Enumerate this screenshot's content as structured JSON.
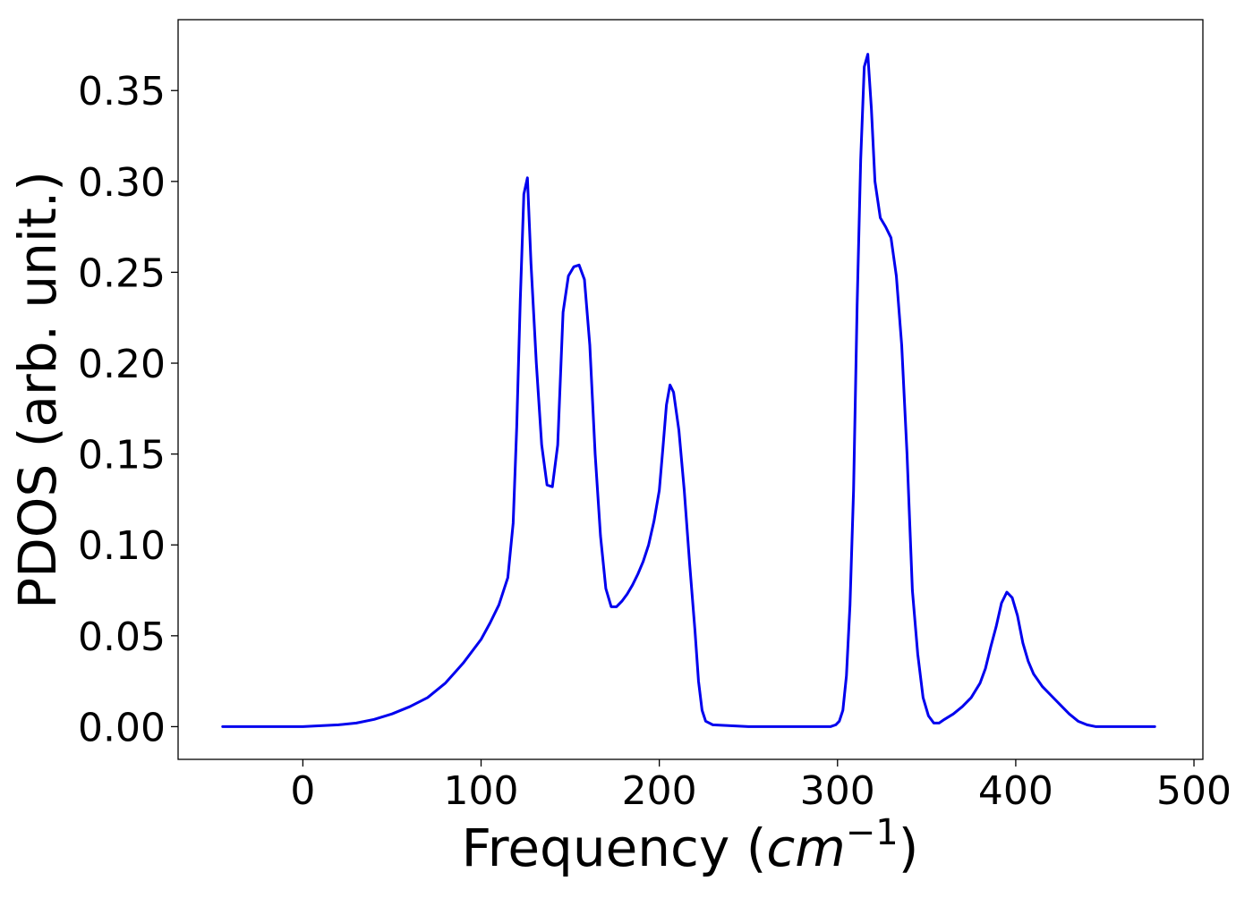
{
  "chart_data": {
    "type": "line",
    "title": "",
    "xlabel": {
      "prefix": "Frequency (",
      "var": "cm",
      "sup": "−1",
      "suffix": ")"
    },
    "ylabel": "PDOS (arb. unit.)",
    "xlim": [
      -70,
      505
    ],
    "ylim": [
      -0.018,
      0.389
    ],
    "xticks": [
      0,
      100,
      200,
      300,
      400,
      500
    ],
    "xtick_labels": [
      "0",
      "100",
      "200",
      "300",
      "400",
      "500"
    ],
    "yticks": [
      0.0,
      0.05,
      0.1,
      0.15,
      0.2,
      0.25,
      0.3,
      0.35
    ],
    "ytick_labels": [
      "0.00",
      "0.05",
      "0.10",
      "0.15",
      "0.20",
      "0.25",
      "0.30",
      "0.35"
    ],
    "grid": false,
    "legend": "none",
    "colors": {
      "series": "#0000ee",
      "axes": "#000000"
    },
    "series": [
      {
        "x": [
          -45,
          0,
          10,
          20,
          30,
          40,
          50,
          60,
          70,
          80,
          90,
          100,
          105,
          110,
          115,
          118,
          120,
          122,
          124,
          126,
          128,
          131,
          134,
          137,
          140,
          143,
          146,
          149,
          152,
          155,
          158,
          161,
          164,
          167,
          170,
          173,
          176,
          179,
          182,
          185,
          188,
          191,
          194,
          197,
          200,
          202,
          204,
          206,
          208,
          211,
          214,
          217,
          220,
          222,
          224,
          226,
          230,
          250,
          270,
          290,
          293,
          296,
          299,
          301,
          303,
          305,
          307,
          309,
          311,
          313,
          315,
          317,
          319,
          321,
          324,
          327,
          330,
          333,
          336,
          339,
          342,
          345,
          348,
          351,
          354,
          357,
          360,
          365,
          370,
          375,
          380,
          383,
          386,
          389,
          392,
          395,
          398,
          401,
          404,
          407,
          410,
          415,
          420,
          425,
          430,
          435,
          440,
          445,
          450,
          460,
          478
        ],
        "y": [
          0.0,
          0.0,
          0.0005,
          0.001,
          0.002,
          0.004,
          0.007,
          0.011,
          0.016,
          0.024,
          0.035,
          0.048,
          0.057,
          0.067,
          0.082,
          0.112,
          0.165,
          0.235,
          0.293,
          0.302,
          0.255,
          0.2,
          0.155,
          0.133,
          0.132,
          0.155,
          0.228,
          0.248,
          0.253,
          0.254,
          0.246,
          0.21,
          0.15,
          0.105,
          0.076,
          0.066,
          0.066,
          0.069,
          0.073,
          0.078,
          0.084,
          0.091,
          0.1,
          0.113,
          0.13,
          0.153,
          0.177,
          0.188,
          0.184,
          0.163,
          0.13,
          0.09,
          0.053,
          0.025,
          0.009,
          0.003,
          0.001,
          0.0,
          0.0,
          0.0,
          0.0,
          0.0,
          0.001,
          0.003,
          0.009,
          0.028,
          0.067,
          0.13,
          0.232,
          0.312,
          0.363,
          0.37,
          0.34,
          0.3,
          0.28,
          0.275,
          0.269,
          0.248,
          0.21,
          0.15,
          0.075,
          0.04,
          0.016,
          0.006,
          0.002,
          0.002,
          0.004,
          0.007,
          0.011,
          0.016,
          0.024,
          0.032,
          0.044,
          0.055,
          0.068,
          0.074,
          0.071,
          0.061,
          0.046,
          0.036,
          0.029,
          0.022,
          0.017,
          0.012,
          0.007,
          0.003,
          0.001,
          0.0,
          0.0,
          0.0,
          0.0
        ]
      }
    ]
  }
}
